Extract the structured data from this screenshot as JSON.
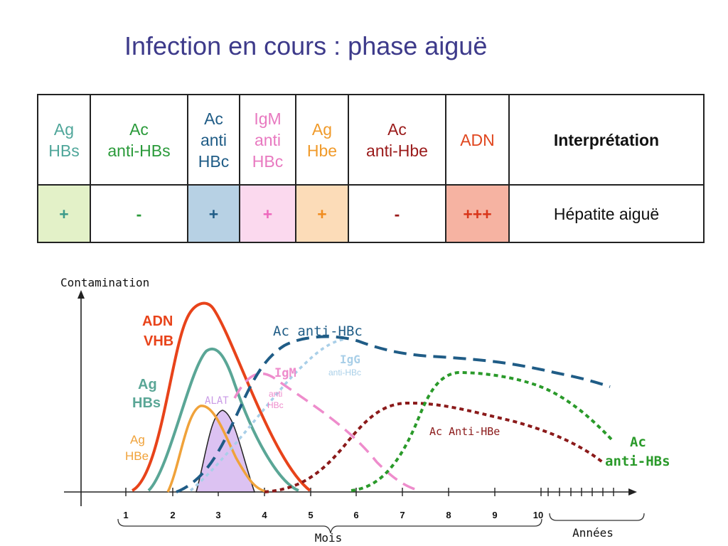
{
  "title": "Infection en cours : phase aiguë",
  "table": {
    "headers": [
      {
        "lines": [
          "Ag",
          "HBs"
        ],
        "color": "#4fa69a"
      },
      {
        "lines": [
          "Ac",
          "anti-HBs"
        ],
        "color": "#2a9a3a"
      },
      {
        "lines": [
          "Ac",
          "anti",
          "HBc"
        ],
        "color": "#1f5c86"
      },
      {
        "lines": [
          "IgM",
          "anti",
          "HBc"
        ],
        "color": "#e879c0"
      },
      {
        "lines": [
          "Ag",
          "Hbe"
        ],
        "color": "#f09a2a"
      },
      {
        "lines": [
          "Ac",
          "anti-Hbe"
        ],
        "color": "#9a1a1a"
      },
      {
        "lines": [
          "ADN"
        ],
        "color": "#e0461e"
      },
      {
        "lines": [
          "Interprétation"
        ],
        "color": "#111111"
      }
    ],
    "row": [
      {
        "text": "+",
        "color": "#3c9a8a",
        "bg": "#e3f1c8"
      },
      {
        "text": "-",
        "color": "#2a9a3a",
        "bg": "#ffffff"
      },
      {
        "text": "+",
        "color": "#1f5c86",
        "bg": "#b7d1e4"
      },
      {
        "text": "+",
        "color": "#ee69bd",
        "bg": "#fbd9ee"
      },
      {
        "text": "+",
        "color": "#f08c1e",
        "bg": "#fcdcb8"
      },
      {
        "text": "-",
        "color": "#9a1a1a",
        "bg": "#ffffff"
      },
      {
        "text": "+++",
        "color": "#d9361a",
        "bg": "#f6b3a2"
      },
      {
        "text": "Hépatite aiguë",
        "color": "#111111",
        "bg": "#ffffff"
      }
    ]
  },
  "chart": {
    "ylabel": "Contamination",
    "x_month_ticks": [
      "1",
      "2",
      "3",
      "4",
      "5",
      "6",
      "7",
      "8",
      "9",
      "10"
    ],
    "xlabel_months": "Mois",
    "xlabel_years": "Années",
    "labels": {
      "adn_1": "ADN",
      "adn_2": "VHB",
      "aghbs_1": "Ag",
      "aghbs_2": "HBs",
      "aghbe_1": "Ag",
      "aghbe_2": "HBe",
      "alat": "ALAT",
      "anti_hbc": "Ac anti-HBc",
      "igm": "IgM",
      "igm_sub_1": "anti",
      "igm_sub_2": "HBc",
      "igg": "IgG",
      "igg_sub": "anti-HBc",
      "anti_hbe": "Ac Anti-HBe",
      "anti_hbs_1": "Ac",
      "anti_hbs_2": "anti-HBs"
    },
    "colors": {
      "adn": "#e8431a",
      "aghbs": "#5aa696",
      "aghbe": "#f0a23a",
      "alat_fill": "#dcc2f2",
      "alat_stroke": "#222222",
      "anti_hbc": "#1f5c86",
      "igm": "#ee8ccc",
      "igg": "#a9cfe8",
      "anti_hbe": "#8b1a1a",
      "anti_hbs": "#2a9a2a"
    }
  }
}
